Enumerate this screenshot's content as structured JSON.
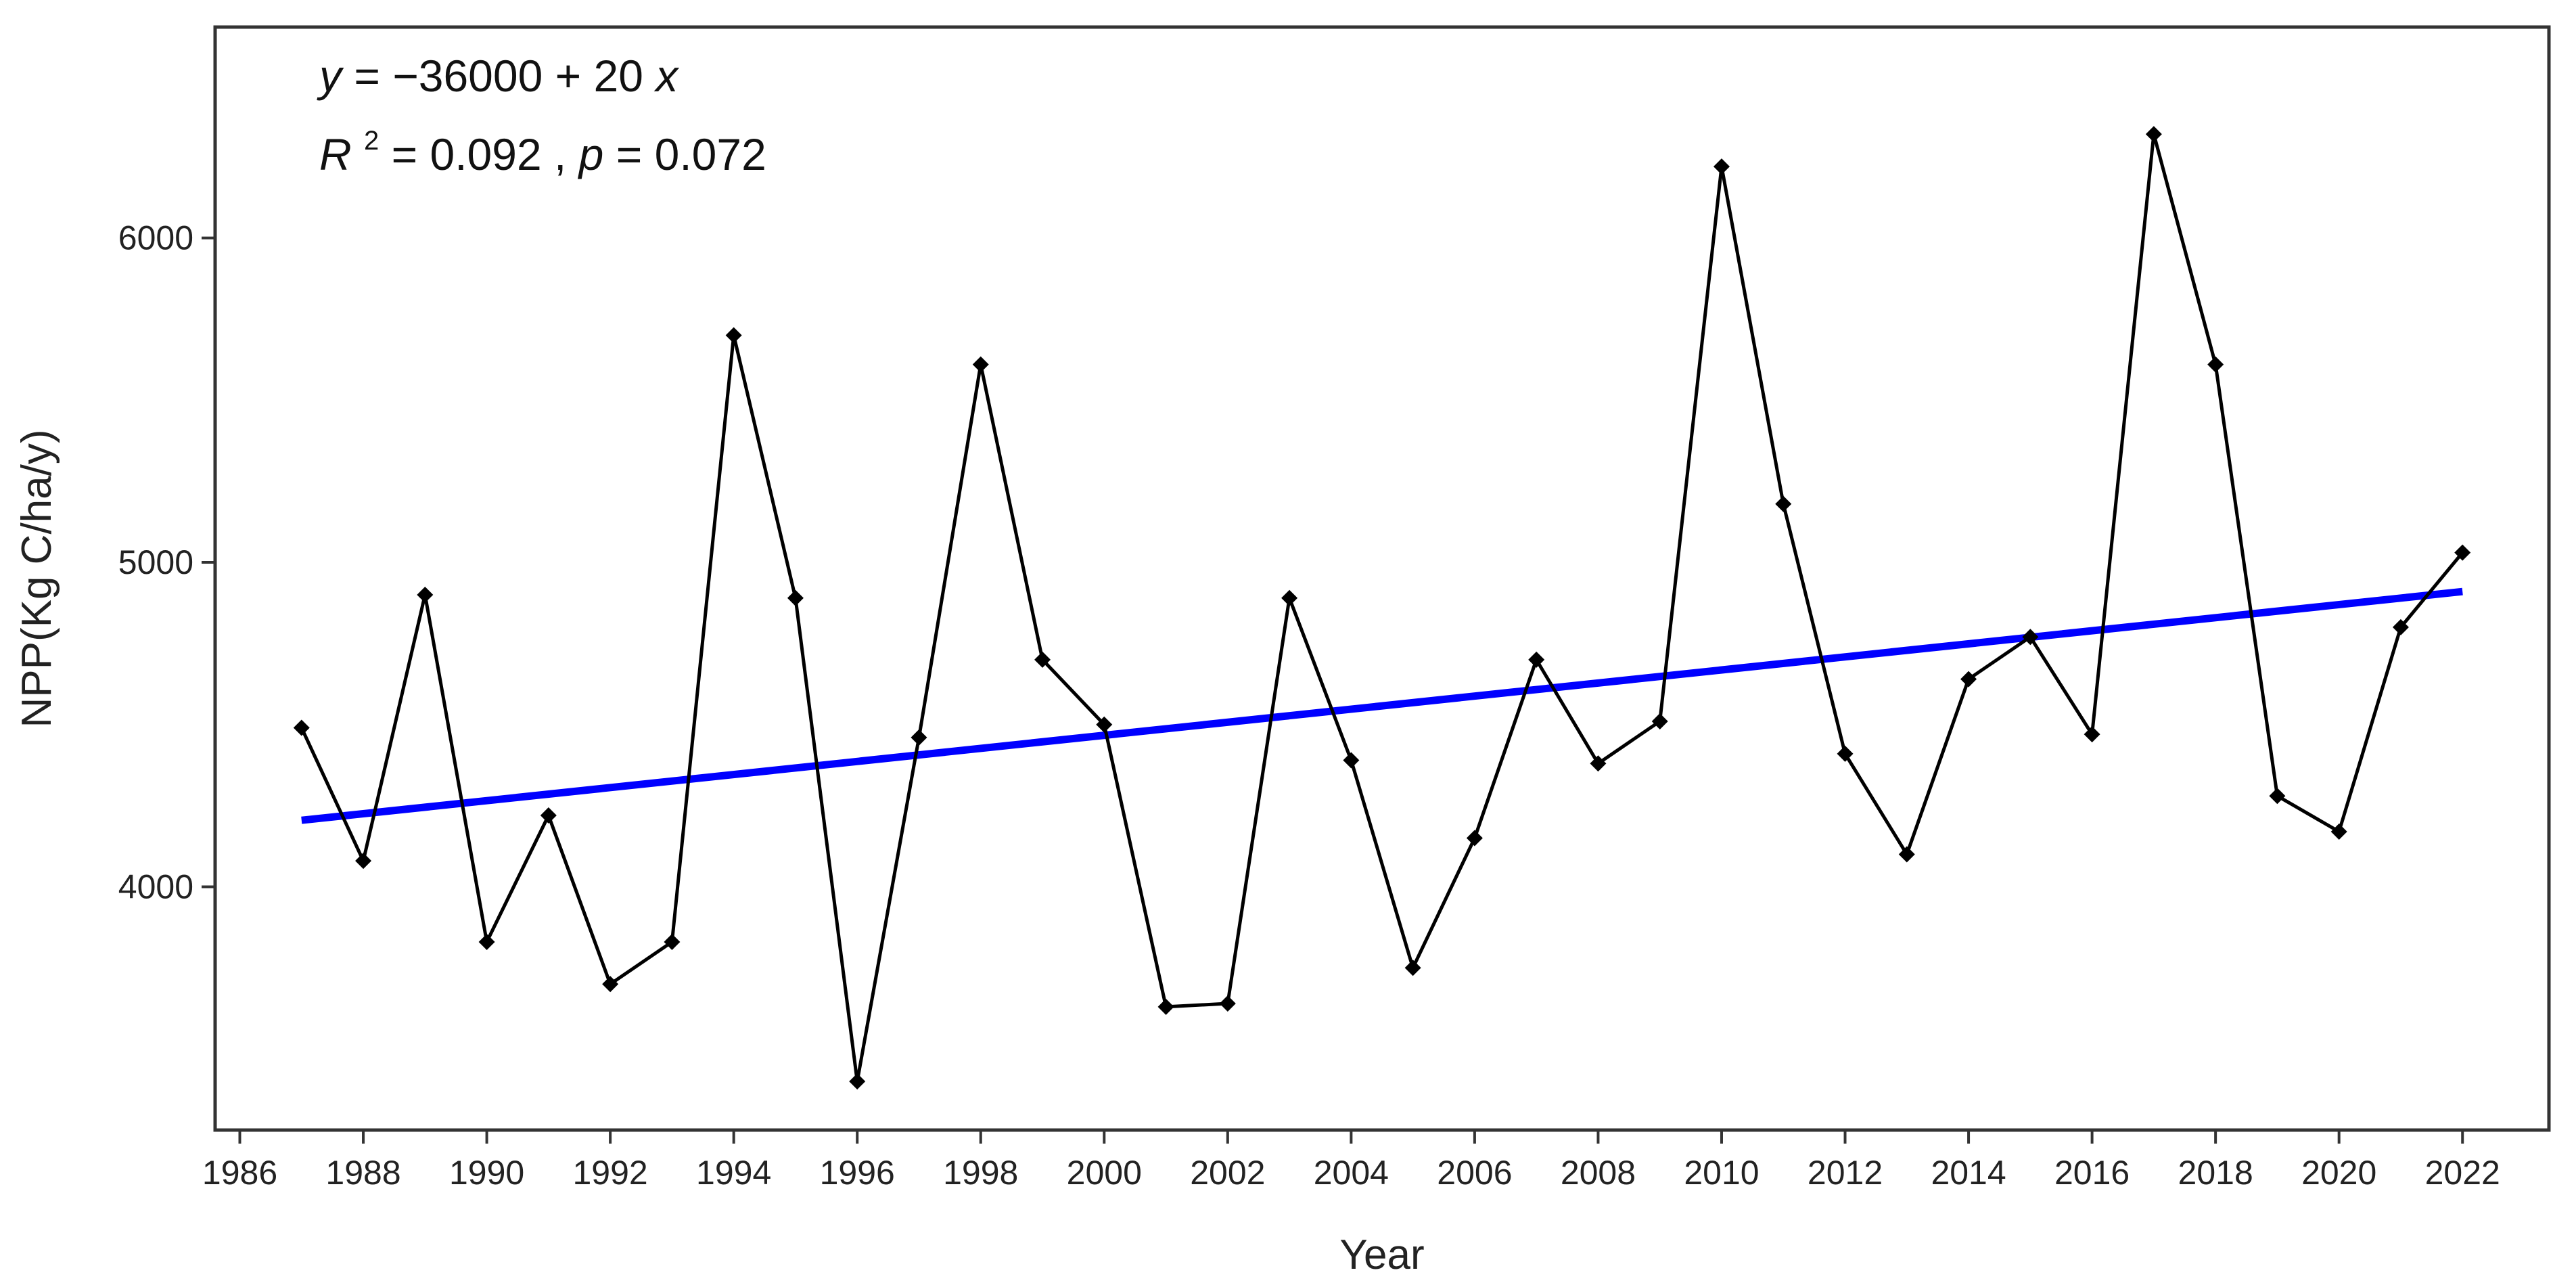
{
  "chart_data": {
    "type": "line",
    "title": "",
    "xlabel": "Year",
    "ylabel": "NPP(Kg C/ha/y)",
    "xlim": [
      1985.6,
      2023.4
    ],
    "ylim": [
      3250,
      6650
    ],
    "x_ticks": [
      1986,
      1988,
      1990,
      1992,
      1994,
      1996,
      1998,
      2000,
      2002,
      2004,
      2006,
      2008,
      2010,
      2012,
      2014,
      2016,
      2018,
      2020,
      2022
    ],
    "x_tick_labels": [
      "1986",
      "1988",
      "1990",
      "1992",
      "1994",
      "1996",
      "1998",
      "2000",
      "2002",
      "2004",
      "2006",
      "2008",
      "2010",
      "2012",
      "2014",
      "2016",
      "2018",
      "2020",
      "2022"
    ],
    "y_ticks": [
      4000,
      5000,
      6000
    ],
    "y_tick_labels": [
      "4000",
      "5000",
      "6000"
    ],
    "grid": false,
    "series": [
      {
        "type": "line",
        "color": "#000000",
        "marker": "diamond",
        "x": [
          1987,
          1988,
          1989,
          1990,
          1991,
          1992,
          1993,
          1994,
          1995,
          1996,
          1997,
          1998,
          1999,
          2000,
          2001,
          2002,
          2003,
          2004,
          2005,
          2006,
          2007,
          2008,
          2009,
          2010,
          2011,
          2012,
          2013,
          2014,
          2015,
          2016,
          2017,
          2018,
          2019,
          2020,
          2021,
          2022
        ],
        "y": [
          4490,
          4080,
          4900,
          3830,
          4220,
          3700,
          3830,
          5700,
          4890,
          3400,
          4460,
          5610,
          4700,
          4500,
          3630,
          3640,
          4890,
          4390,
          3750,
          4150,
          4700,
          4380,
          4510,
          6220,
          5180,
          4410,
          4100,
          4640,
          4770,
          4470,
          6320,
          5610,
          4280,
          4170,
          4800,
          5030
        ]
      },
      {
        "type": "trend",
        "color": "#0000ff",
        "x": [
          1987,
          2022
        ],
        "y": [
          4205,
          4910
        ]
      }
    ],
    "annotations": {
      "equation": {
        "y_var": "y",
        "eq_text": " = −36000 + 20 ",
        "x_var": "x"
      },
      "stats": {
        "r_var": "R",
        "r_exp": "2",
        "r_text": " = 0.092 , ",
        "p_var": "p",
        "p_text": " = 0.072"
      }
    }
  }
}
